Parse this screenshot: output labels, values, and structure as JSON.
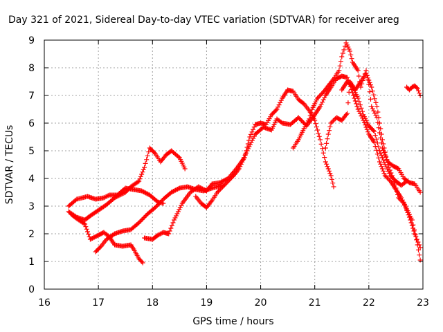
{
  "chart_data": {
    "type": "scatter",
    "title": "Day 321 of 2021, Sidereal Day-to-day VTEC variation (SDTVAR) for receiver areg",
    "xlabel": "GPS time / hours",
    "ylabel": "SDTVAR / TECUs",
    "xlim": [
      16,
      23
    ],
    "ylim": [
      0,
      9
    ],
    "xticks": [
      16,
      17,
      18,
      19,
      20,
      21,
      22,
      23
    ],
    "yticks": [
      0,
      1,
      2,
      3,
      4,
      5,
      6,
      7,
      8,
      9
    ],
    "grid": true,
    "marker": "+",
    "color": "#ff0000",
    "series": [
      {
        "name": "trace-1",
        "points": [
          [
            16.45,
            3.0
          ],
          [
            16.6,
            3.25
          ],
          [
            16.8,
            3.35
          ],
          [
            16.95,
            3.25
          ],
          [
            17.1,
            3.3
          ],
          [
            17.2,
            3.4
          ],
          [
            17.35,
            3.4
          ],
          [
            17.5,
            3.65
          ],
          [
            17.65,
            3.6
          ],
          [
            17.8,
            3.55
          ],
          [
            17.95,
            3.4
          ],
          [
            18.1,
            3.15
          ],
          [
            18.2,
            3.1
          ]
        ]
      },
      {
        "name": "trace-2",
        "points": [
          [
            16.45,
            2.8
          ],
          [
            16.6,
            2.6
          ],
          [
            16.75,
            2.5
          ],
          [
            16.85,
            2.65
          ],
          [
            17.0,
            2.85
          ],
          [
            17.15,
            3.05
          ],
          [
            17.3,
            3.3
          ],
          [
            17.5,
            3.5
          ],
          [
            17.6,
            3.7
          ],
          [
            17.75,
            3.9
          ],
          [
            17.85,
            4.4
          ],
          [
            17.95,
            5.1
          ],
          [
            18.05,
            4.9
          ],
          [
            18.15,
            4.6
          ],
          [
            18.25,
            4.85
          ],
          [
            18.35,
            5.0
          ],
          [
            18.5,
            4.75
          ],
          [
            18.6,
            4.35
          ]
        ]
      },
      {
        "name": "trace-3",
        "points": [
          [
            16.5,
            2.7
          ],
          [
            16.6,
            2.55
          ],
          [
            16.75,
            2.35
          ],
          [
            16.85,
            1.8
          ],
          [
            17.0,
            1.95
          ],
          [
            17.1,
            2.05
          ],
          [
            17.2,
            1.9
          ],
          [
            17.3,
            1.6
          ],
          [
            17.45,
            1.55
          ],
          [
            17.6,
            1.6
          ],
          [
            17.65,
            1.45
          ],
          [
            17.75,
            1.1
          ],
          [
            17.82,
            0.95
          ]
        ]
      },
      {
        "name": "trace-4",
        "points": [
          [
            16.95,
            1.35
          ],
          [
            17.05,
            1.55
          ],
          [
            17.15,
            1.8
          ],
          [
            17.3,
            2.0
          ],
          [
            17.45,
            2.1
          ],
          [
            17.6,
            2.15
          ],
          [
            17.75,
            2.4
          ],
          [
            17.9,
            2.7
          ],
          [
            18.05,
            2.95
          ],
          [
            18.2,
            3.25
          ],
          [
            18.35,
            3.5
          ],
          [
            18.5,
            3.65
          ],
          [
            18.65,
            3.7
          ],
          [
            18.8,
            3.6
          ],
          [
            18.95,
            3.55
          ],
          [
            19.1,
            3.65
          ],
          [
            19.3,
            3.75
          ]
        ]
      },
      {
        "name": "trace-5",
        "points": [
          [
            17.85,
            1.85
          ],
          [
            18.0,
            1.8
          ],
          [
            18.1,
            1.95
          ],
          [
            18.2,
            2.05
          ],
          [
            18.3,
            2.0
          ],
          [
            18.4,
            2.5
          ],
          [
            18.55,
            3.1
          ],
          [
            18.7,
            3.5
          ],
          [
            18.85,
            3.7
          ],
          [
            19.0,
            3.55
          ],
          [
            19.1,
            3.8
          ],
          [
            19.25,
            3.85
          ],
          [
            19.4,
            4.0
          ],
          [
            19.55,
            4.35
          ],
          [
            19.7,
            4.75
          ],
          [
            19.8,
            5.5
          ],
          [
            19.9,
            5.95
          ],
          [
            20.0,
            6.0
          ],
          [
            20.1,
            5.95
          ],
          [
            20.2,
            6.3
          ],
          [
            20.3,
            6.5
          ],
          [
            20.4,
            6.9
          ],
          [
            20.5,
            7.2
          ],
          [
            20.6,
            7.15
          ],
          [
            20.7,
            6.85
          ],
          [
            20.8,
            6.7
          ],
          [
            20.9,
            6.45
          ],
          [
            21.0,
            6.1
          ],
          [
            21.1,
            5.4
          ],
          [
            21.2,
            4.6
          ],
          [
            21.3,
            4.1
          ],
          [
            21.35,
            3.7
          ]
        ]
      },
      {
        "name": "trace-6",
        "points": [
          [
            18.8,
            3.35
          ],
          [
            18.9,
            3.1
          ],
          [
            19.0,
            2.95
          ],
          [
            19.1,
            3.2
          ],
          [
            19.2,
            3.5
          ],
          [
            19.35,
            3.8
          ],
          [
            19.5,
            4.1
          ],
          [
            19.6,
            4.35
          ],
          [
            19.75,
            5.0
          ],
          [
            19.9,
            5.6
          ],
          [
            20.05,
            5.85
          ],
          [
            20.2,
            5.75
          ],
          [
            20.3,
            6.15
          ],
          [
            20.4,
            6.0
          ],
          [
            20.55,
            5.95
          ],
          [
            20.7,
            6.2
          ],
          [
            20.85,
            5.9
          ],
          [
            21.0,
            6.3
          ],
          [
            21.1,
            6.6
          ],
          [
            21.2,
            7.0
          ],
          [
            21.3,
            7.3
          ],
          [
            21.4,
            7.6
          ],
          [
            21.5,
            7.7
          ],
          [
            21.6,
            7.65
          ],
          [
            21.7,
            7.1
          ],
          [
            21.8,
            6.5
          ],
          [
            21.9,
            6.1
          ],
          [
            22.0,
            5.6
          ],
          [
            22.1,
            5.3
          ],
          [
            22.2,
            4.6
          ],
          [
            22.3,
            4.1
          ],
          [
            22.4,
            3.9
          ],
          [
            22.5,
            3.6
          ],
          [
            22.6,
            3.3
          ],
          [
            22.7,
            2.9
          ],
          [
            22.8,
            2.5
          ],
          [
            22.9,
            1.6
          ],
          [
            22.95,
            1.05
          ]
        ]
      },
      {
        "name": "trace-7",
        "points": [
          [
            20.6,
            5.1
          ],
          [
            20.7,
            5.4
          ],
          [
            20.8,
            5.8
          ],
          [
            20.9,
            6.15
          ],
          [
            20.95,
            6.5
          ],
          [
            21.05,
            6.9
          ],
          [
            21.15,
            7.1
          ],
          [
            21.25,
            7.35
          ],
          [
            21.35,
            7.6
          ],
          [
            21.45,
            7.9
          ],
          [
            21.5,
            8.4
          ],
          [
            21.58,
            8.9
          ],
          [
            21.65,
            8.6
          ],
          [
            21.7,
            8.2
          ],
          [
            21.8,
            7.9
          ],
          [
            21.85,
            7.3
          ],
          [
            21.95,
            7.9
          ],
          [
            22.0,
            7.4
          ],
          [
            22.05,
            6.6
          ],
          [
            22.15,
            6.2
          ],
          [
            22.25,
            5.1
          ],
          [
            22.35,
            4.6
          ],
          [
            22.45,
            4.45
          ],
          [
            22.55,
            4.35
          ],
          [
            22.65,
            4.0
          ],
          [
            22.75,
            3.85
          ],
          [
            22.85,
            3.8
          ],
          [
            22.95,
            3.5
          ]
        ]
      },
      {
        "name": "trace-8",
        "points": [
          [
            21.2,
            5.1
          ],
          [
            21.25,
            5.6
          ],
          [
            21.3,
            6.0
          ],
          [
            21.4,
            6.2
          ],
          [
            21.5,
            6.1
          ],
          [
            21.6,
            6.35
          ],
          [
            21.65,
            7.5
          ],
          [
            21.75,
            7.2
          ],
          [
            21.85,
            7.5
          ],
          [
            21.95,
            7.8
          ],
          [
            22.05,
            7.3
          ],
          [
            22.15,
            6.6
          ],
          [
            22.25,
            5.4
          ],
          [
            22.35,
            4.5
          ],
          [
            22.45,
            4.0
          ],
          [
            22.55,
            3.3
          ],
          [
            22.65,
            3.1
          ],
          [
            22.75,
            2.6
          ],
          [
            22.85,
            2.0
          ],
          [
            22.95,
            1.5
          ]
        ]
      },
      {
        "name": "trace-9",
        "points": [
          [
            21.5,
            7.2
          ],
          [
            21.6,
            7.5
          ],
          [
            21.7,
            7.3
          ],
          [
            21.8,
            6.9
          ],
          [
            21.9,
            6.3
          ],
          [
            22.0,
            5.9
          ],
          [
            22.1,
            5.7
          ],
          [
            22.2,
            5.0
          ],
          [
            22.3,
            4.5
          ],
          [
            22.4,
            4.1
          ],
          [
            22.5,
            3.9
          ],
          [
            22.6,
            3.75
          ],
          [
            22.7,
            3.9
          ]
        ]
      },
      {
        "name": "trace-10",
        "points": [
          [
            22.7,
            7.3
          ],
          [
            22.75,
            7.2
          ],
          [
            22.8,
            7.3
          ],
          [
            22.85,
            7.35
          ],
          [
            22.9,
            7.25
          ],
          [
            22.95,
            7.0
          ]
        ]
      }
    ]
  }
}
